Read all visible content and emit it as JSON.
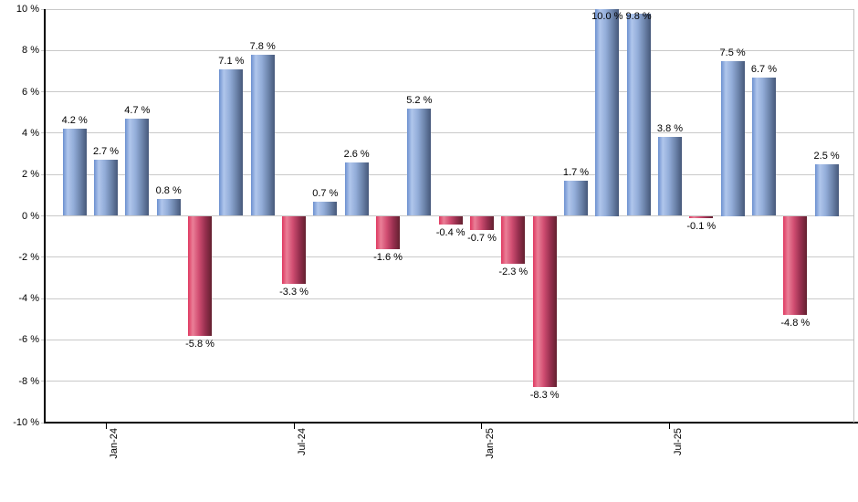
{
  "chart_data": {
    "type": "bar",
    "title": "",
    "xlabel": "",
    "ylabel": "",
    "ylim": [
      -10,
      10
    ],
    "grid": "horizontal",
    "legend": "none",
    "values": [
      4.2,
      2.7,
      4.7,
      0.8,
      -5.8,
      7.1,
      7.8,
      -3.3,
      0.7,
      2.6,
      -1.6,
      5.2,
      -0.4,
      -0.7,
      -2.3,
      -8.3,
      1.7,
      10.0,
      9.8,
      3.8,
      -0.1,
      7.5,
      6.7,
      -4.8,
      2.5
    ],
    "bar_labels": [
      "4.2 %",
      "2.7 %",
      "4.7 %",
      "0.8 %",
      "-5.8 %",
      "7.1 %",
      "7.8 %",
      "-3.3 %",
      "0.7 %",
      "2.6 %",
      "-1.6 %",
      "5.2 %",
      "-0.4 %",
      "-0.7 %",
      "-2.3 %",
      "-8.3 %",
      "1.7 %",
      "10.0 %",
      "9.8 %",
      "3.8 %",
      "-0.1 %",
      "7.5 %",
      "6.7 %",
      "-4.8 %",
      "2.5 %"
    ],
    "y_ticks": [
      10,
      8,
      6,
      4,
      2,
      0,
      -2,
      -4,
      -6,
      -8,
      -10
    ],
    "y_tick_labels": [
      "10 %",
      "8 %",
      "6 %",
      "4 %",
      "2 %",
      "0 %",
      "-2 %",
      "-4 %",
      "-6 %",
      "-8 %",
      "-10 %"
    ],
    "x_ticks": [
      {
        "bar_index": 1,
        "label": "Jan-24"
      },
      {
        "bar_index": 7,
        "label": "Jul-24"
      },
      {
        "bar_index": 13,
        "label": "Jan-25"
      },
      {
        "bar_index": 19,
        "label": "Jul-25"
      }
    ],
    "colors": {
      "background": "#ffffff",
      "gridline": "#c9c9c9",
      "axis": "#000000",
      "right_border": "#bfbfbf",
      "label_text": "#000000",
      "positive_bar_gradient": [
        "#6c90cf",
        "#b0c6ec",
        "#93add9",
        "#6e86ad",
        "#46587a"
      ],
      "negative_bar_gradient": [
        "#df3760",
        "#ea7f97",
        "#d14e72",
        "#993050",
        "#63202f"
      ]
    }
  }
}
